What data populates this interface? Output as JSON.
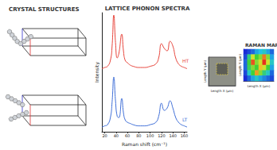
{
  "chart_data": [
    {
      "type": "diagram",
      "title": "CRYSTAL STRUCTURES"
    },
    {
      "type": "line",
      "title": "LATTICE PHONON SPECTRA",
      "x_label": "Raman shift (cm⁻¹)",
      "y_label": "Intensity",
      "x": [
        15,
        20,
        25,
        30,
        33,
        36,
        39,
        42,
        45,
        50,
        53,
        56,
        60,
        65,
        70,
        80,
        90,
        100,
        110,
        115,
        120,
        125,
        130,
        135,
        140,
        145,
        150,
        155,
        160,
        165
      ],
      "xlim": [
        15,
        165
      ],
      "xticks": [
        20,
        40,
        60,
        80,
        100,
        120,
        140,
        160
      ],
      "ylim": [
        0,
        10
      ],
      "tick_labels": "x",
      "series": [
        {
          "name": "HT",
          "color": "#e8453c",
          "values": [
            5.3,
            5.4,
            5.5,
            6.0,
            7.2,
            9.8,
            7.5,
            6.2,
            6.6,
            8.2,
            6.8,
            6.0,
            5.8,
            5.6,
            5.5,
            5.4,
            5.4,
            5.5,
            5.7,
            6.2,
            7.4,
            7.0,
            6.8,
            7.6,
            7.2,
            6.2,
            5.7,
            5.5,
            5.4,
            5.3
          ]
        },
        {
          "name": "LT",
          "color": "#3f6fd8",
          "values": [
            0.4,
            0.5,
            0.6,
            1.2,
            2.5,
            4.6,
            2.6,
            1.3,
            1.2,
            2.8,
            1.6,
            1.0,
            0.8,
            0.7,
            0.6,
            0.5,
            0.5,
            0.6,
            0.8,
            1.3,
            2.4,
            1.8,
            2.0,
            2.6,
            2.0,
            1.2,
            0.8,
            0.6,
            0.5,
            0.4
          ]
        }
      ]
    },
    {
      "type": "image",
      "x_label": "Length X (μm)",
      "y_label": "Length Y (μm)",
      "tick_labels": false
    },
    {
      "type": "heatmap",
      "title": "RAMAN MAP",
      "x_label": "Length X (μm)",
      "y_label": "Length Y (μm)",
      "tick_labels": false,
      "range": [
        0,
        1
      ],
      "cells": [
        [
          0.0,
          0.05,
          0.1,
          0.2,
          0.25,
          0.3,
          0.2,
          0.1
        ],
        [
          0.05,
          0.4,
          0.7,
          0.5,
          0.6,
          0.9,
          0.6,
          0.2
        ],
        [
          0.1,
          0.5,
          0.95,
          0.6,
          0.7,
          1.0,
          0.7,
          0.3
        ],
        [
          0.1,
          0.45,
          0.6,
          0.5,
          0.8,
          0.7,
          0.5,
          0.2
        ],
        [
          0.05,
          0.3,
          0.5,
          0.85,
          0.6,
          0.4,
          0.3,
          0.1
        ],
        [
          0.0,
          0.1,
          0.2,
          0.3,
          0.2,
          0.15,
          0.1,
          0.05
        ]
      ]
    }
  ]
}
